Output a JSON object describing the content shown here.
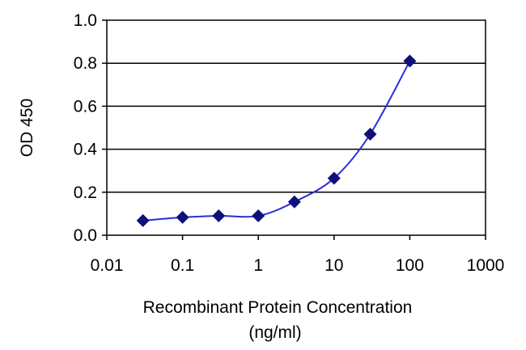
{
  "chart_data": {
    "type": "line",
    "title": "",
    "xlabel": "Recombinant Protein Concentration",
    "xlabel_line2": "(ng/ml)",
    "ylabel": "OD 450",
    "x_scale": "log",
    "xlim": [
      0.01,
      1000
    ],
    "ylim": [
      0,
      1.0
    ],
    "x_tick_labels": [
      "0.01",
      "0.1",
      "1",
      "10",
      "100",
      "1000"
    ],
    "y_tick_labels": [
      "0.0",
      "0.2",
      "0.4",
      "0.6",
      "0.8",
      "1.0"
    ],
    "grid": "horizontal",
    "series": [
      {
        "x": [
          0.03,
          0.1,
          0.3,
          1,
          3,
          10,
          30,
          100
        ],
        "y": [
          0.068,
          0.083,
          0.09,
          0.09,
          0.155,
          0.265,
          0.47,
          0.81
        ]
      }
    ],
    "colors": {
      "line": "#2b2bd6",
      "marker": "#10107a",
      "grid": "#000000"
    }
  }
}
